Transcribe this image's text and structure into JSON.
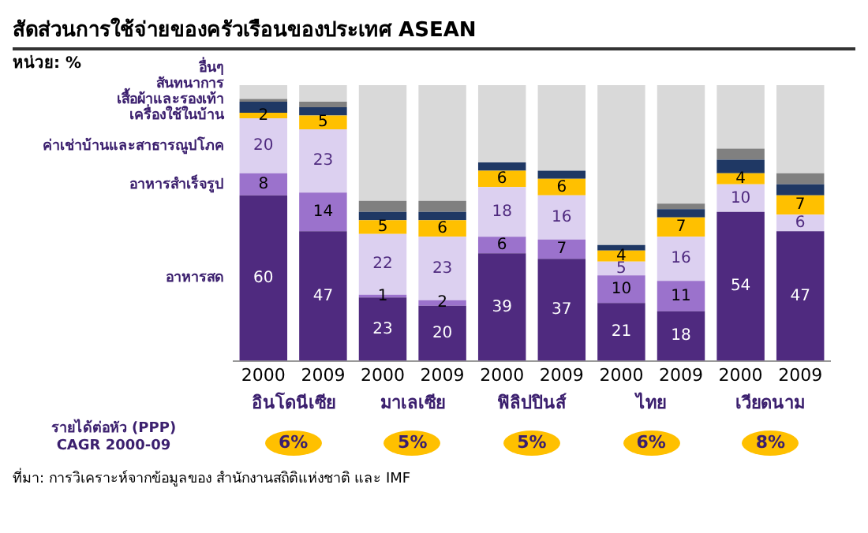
{
  "chart_data": {
    "type": "bar",
    "stacked": true,
    "title": "สัดส่วนการใช้จ่ายของครัวเรือนของประเทศ ASEAN",
    "categories": [
      "2000",
      "2009",
      "2000",
      "2009",
      "2000",
      "2009",
      "2000",
      "2009",
      "2000",
      "2009"
    ],
    "ylim": [
      0,
      100
    ],
    "tick_labels": "x",
    "legend": "left",
    "grid": false,
    "series": [
      {
        "name": "อาหารสด",
        "color": "#4f2a7f",
        "values": [
          60,
          47,
          23,
          20,
          39,
          37,
          21,
          18,
          54,
          47
        ],
        "value_labels": [
          "60",
          "47",
          "23",
          "20",
          "39",
          "37",
          "21",
          "18",
          "54",
          "47"
        ]
      },
      {
        "name": "อาหารสำเร็จรูป",
        "color": "#9b72cc",
        "values": [
          8,
          14,
          1,
          2,
          6,
          7,
          10,
          11,
          null,
          null
        ],
        "value_labels": [
          "8",
          "14",
          "1",
          "2",
          "6",
          "7",
          "10",
          "11",
          null,
          null
        ]
      },
      {
        "name": "ค่าเช่าบ้านและสาธารณูปโภค",
        "color": "#dcd0f0",
        "values": [
          20,
          23,
          22,
          23,
          18,
          16,
          5,
          16,
          10,
          6
        ],
        "value_labels": [
          "20",
          "23",
          "22",
          "23",
          "18",
          "16",
          "5",
          "16",
          "10",
          "6"
        ]
      },
      {
        "name": "เครื่องใช้ในบ้าน",
        "color": "#ffc000",
        "values": [
          2,
          5,
          5,
          6,
          6,
          6,
          4,
          7,
          4,
          7
        ],
        "value_labels": [
          "2",
          "5",
          "5",
          "6",
          "6",
          "6",
          "4",
          "7",
          "4",
          "7"
        ]
      },
      {
        "name": "เสื้อผ้าและรองเท้า",
        "color": "#1f3864",
        "values": [
          4,
          3,
          3,
          3,
          3,
          3,
          2,
          3,
          5,
          4
        ]
      },
      {
        "name": "สันทนาการ",
        "color": "#808080",
        "values": [
          1,
          2,
          4,
          4,
          null,
          null,
          null,
          2,
          4,
          4
        ]
      },
      {
        "name": "อื่นๆ",
        "color": "#d9d9d9",
        "values": [
          5,
          6,
          42,
          42,
          28,
          31,
          58,
          43,
          23,
          32
        ]
      }
    ],
    "annotations": [
      "อินโดนีเซีย",
      "มาเลเซีย",
      "ฟิลิปปินส์",
      "ไทย",
      "เวียดนาม",
      "รายได้ต่อหัว (PPP)\nCAGR 2000-09",
      "6%",
      "5%",
      "5%",
      "6%",
      "8%",
      "หน่วย: %",
      "ที่มา: การวิเคราะห์จากข้อมูลของ สำนักงานสถิติแห่งชาติ และ IMF"
    ]
  }
}
